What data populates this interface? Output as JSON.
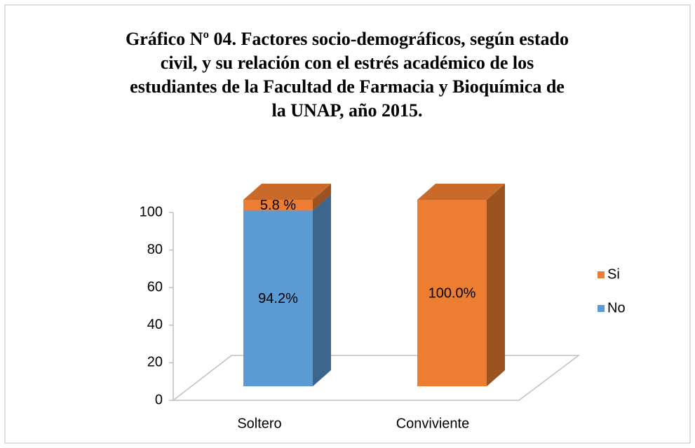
{
  "chart_data": {
    "type": "bar3d_stacked",
    "title": [
      "Gráfico Nº 04. Factores socio-demográficos, según estado",
      "civil, y su relación con el estrés académico de los",
      "estudiantes de la Facultad de Farmacia y Bioquímica de",
      "la UNAP, año 2015."
    ],
    "categories": [
      "Soltero",
      "Conviviente"
    ],
    "series": [
      {
        "name": "No",
        "color": "#5b9bd5",
        "values": [
          94.2,
          0
        ],
        "value_labels": [
          "94.2%",
          null
        ]
      },
      {
        "name": "Si",
        "color": "#ed7d31",
        "values": [
          5.8,
          100
        ],
        "value_labels": [
          "5.8 %",
          "100.0%"
        ]
      }
    ],
    "ylim": [
      0,
      100
    ],
    "yticks": [
      0,
      20,
      40,
      60,
      80,
      100
    ],
    "legend": "right"
  }
}
